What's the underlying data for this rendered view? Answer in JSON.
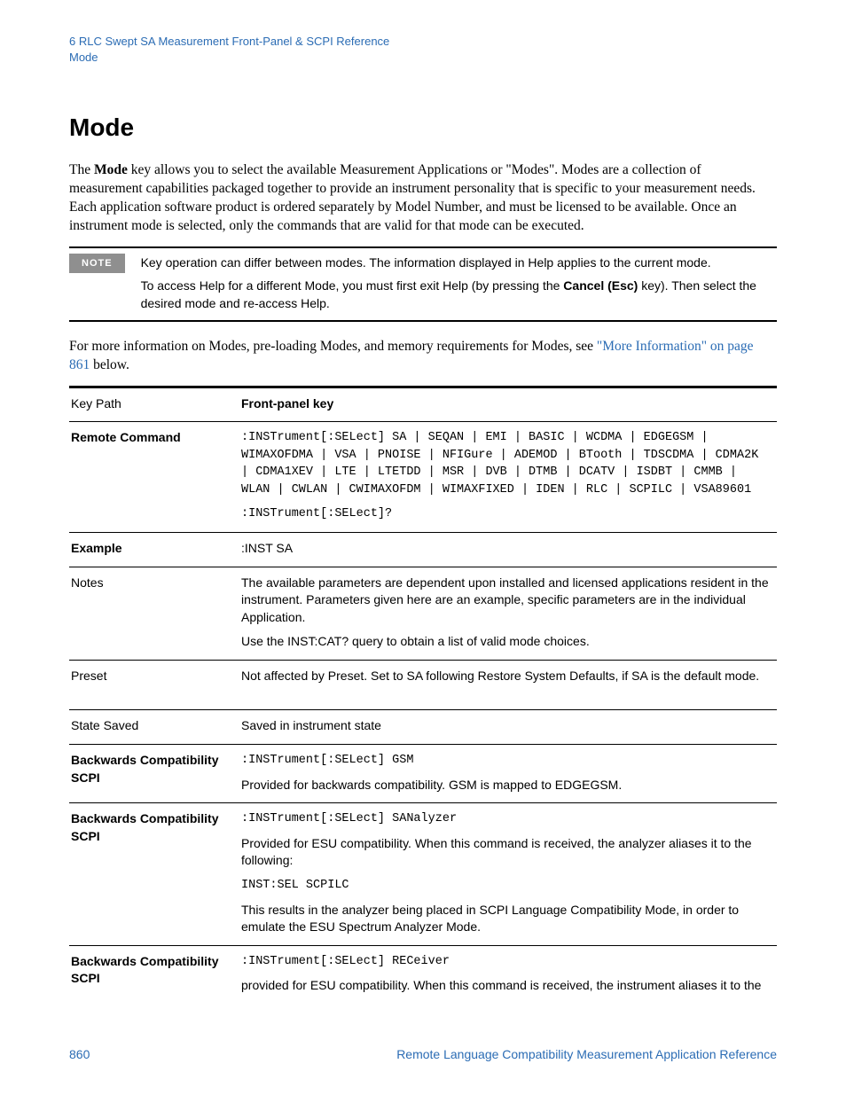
{
  "colors": {
    "link": "#2b6cb4",
    "note_badge_bg": "#8f8f8f",
    "note_badge_fg": "#ffffff",
    "text": "#000000",
    "bg": "#ffffff"
  },
  "header": {
    "line1": "6  RLC Swept SA Measurement Front-Panel & SCPI Reference",
    "line2": "Mode"
  },
  "title": "Mode",
  "intro": {
    "prefix": "The ",
    "bold": "Mode",
    "suffix": " key allows you to select the available Measurement Applications or \"Modes\". Modes are a collection of measurement capabilities packaged together to provide an instrument personality that is specific to your measurement needs. Each application software product is ordered separately by Model Number, and must be licensed  to be available.  Once an instrument mode is selected, only the commands that are valid for that mode can be executed."
  },
  "note": {
    "badge": "NOTE",
    "line1": "Key operation can differ between modes. The information displayed in Help applies to the current mode.",
    "line2_pre": "To access Help for a different Mode, you must first exit Help (by pressing the ",
    "line2_bold": "Cancel (Esc)",
    "line2_post": " key). Then select the desired mode and re-access Help."
  },
  "after_note": {
    "pre": "For more information on Modes, pre-loading Modes, and memory requirements for Modes, see ",
    "link": "\"More Information\" on page 861",
    "post": " below."
  },
  "table": {
    "rows": [
      {
        "label": "Key Path",
        "label_bold": false,
        "cells": [
          {
            "text": "Front-panel key",
            "bold": true
          }
        ]
      },
      {
        "label": "Remote Command",
        "label_bold": true,
        "cells": [
          {
            "mono": ":INSTrument[:SELect] SA | SEQAN | EMI | BASIC | WCDMA | EDGEGSM | WIMAXOFDMA | VSA | PNOISE | NFIGure | ADEMOD | BTooth | TDSCDMA | CDMA2K | CDMA1XEV | LTE | LTETDD | MSR | DVB | DTMB | DCATV | ISDBT | CMMB | WLAN | CWLAN | CWIMAXOFDM | WIMAXFIXED | IDEN | RLC | SCPILC | VSA89601"
          },
          {
            "mono": ":INSTrument[:SELect]?"
          }
        ]
      },
      {
        "label": "Example",
        "label_bold": true,
        "cells": [
          {
            "text": ":INST SA"
          }
        ]
      },
      {
        "label": "Notes",
        "label_bold": false,
        "cells": [
          {
            "text": "The available parameters are dependent upon installed and licensed applications resident in the instrument. Parameters given here are an example, specific parameters are in the  individual Application."
          },
          {
            "text": "Use the INST:CAT? query to obtain a list of valid mode choices."
          }
        ]
      },
      {
        "label": "Preset",
        "label_bold": false,
        "cells": [
          {
            "text": "Not affected by Preset. Set to SA following Restore System Defaults, if SA is the default mode."
          }
        ],
        "extra_pad": true
      },
      {
        "label": "State Saved",
        "label_bold": false,
        "cells": [
          {
            "text": "Saved in instrument state"
          }
        ]
      },
      {
        "label": "Backwards Compatibility SCPI",
        "label_bold": true,
        "cells": [
          {
            "mono": ":INSTrument[:SELect] GSM"
          },
          {
            "text": "Provided for backwards compatibility.  GSM is mapped to EDGEGSM."
          }
        ]
      },
      {
        "label": "Backwards Compatibility SCPI",
        "label_bold": true,
        "cells": [
          {
            "mono": ":INSTrument[:SELect] SANalyzer"
          },
          {
            "text": "Provided for ESU compatibility.  When this command is received, the analyzer aliases it to the following:"
          },
          {
            "mono": "INST:SEL SCPILC"
          },
          {
            "text": "This results in the analyzer being placed in SCPI Language Compatibility Mode, in order to emulate the ESU Spectrum Analyzer Mode."
          }
        ]
      },
      {
        "label": "Backwards Compatibility SCPI",
        "label_bold": true,
        "cells": [
          {
            "mono": ":INSTrument[:SELect] RECeiver"
          },
          {
            "text": "provided for ESU compatibility.  When this command is received, the instrument aliases it to the"
          }
        ]
      }
    ]
  },
  "footer": {
    "page": "860",
    "title": "Remote Language Compatibility Measurement Application Reference"
  }
}
